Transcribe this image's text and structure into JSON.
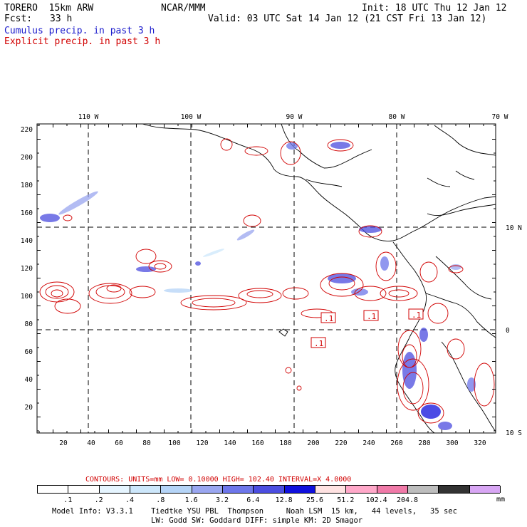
{
  "header": {
    "model": "TORERO  15km ARW",
    "org": "NCAR/MMM",
    "init": "Init: 18 UTC Thu 12 Jan 12",
    "fcst_label": "Fcst:",
    "fcst_value": "33 h",
    "valid": "Valid: 03 UTC Sat 14 Jan 12 (21 CST Fri 13 Jan 12)",
    "line_cumulus": "Cumulus precip. in past 3 h",
    "line_explicit": "Explicit precip. in past 3 h"
  },
  "colors": {
    "cumulus": "#1a1acc",
    "explicit": "#d10000",
    "coast": "#000000"
  },
  "map": {
    "lon_labels": [
      "110 W",
      "100 W",
      "90 W",
      "80 W",
      "70 W"
    ],
    "lat_labels": [
      "10 N",
      "0",
      "10 S"
    ],
    "y_ticks": [
      "220",
      "200",
      "180",
      "160",
      "140",
      "120",
      "100",
      "80",
      "60",
      "40",
      "20"
    ],
    "x_ticks": [
      "20",
      "40",
      "60",
      "80",
      "100",
      "120",
      "140",
      "160",
      "180",
      "200",
      "220",
      "240",
      "260",
      "280",
      "300",
      "320"
    ],
    "box_labels": [
      ".1",
      ".1",
      ".1",
      ".1"
    ]
  },
  "legend": {
    "contours_line": "CONTOURS:  UNITS=mm  LOW= 0.10000     HIGH=  102.40     INTERVAL=X  4.0000",
    "colors": [
      "#ffffff",
      "#ffffff",
      "#e6f5ff",
      "#cde7fb",
      "#b5d4f7",
      "#9aa6f0",
      "#6d76ea",
      "#4b4de0",
      "#1010dd",
      "#ffe2e2",
      "#ffa8c9",
      "#f07aa8",
      "#bdbdbd",
      "#333333",
      "#d8a6f4"
    ],
    "labels": [
      ".1",
      ".2",
      ".4",
      ".8",
      "1.6",
      "3.2",
      "6.4",
      "12.8",
      "25.6",
      "51.2",
      "102.4",
      "204.8"
    ],
    "unit": "mm"
  },
  "footer": {
    "line1": "Model Info: V3.3.1    Tiedtke YSU PBL  Thompson     Noah LSM  15 km,   44 levels,   35 sec",
    "line2": "LW: Godd SW: Goddard DIFF: simple KM: 2D Smagor"
  }
}
